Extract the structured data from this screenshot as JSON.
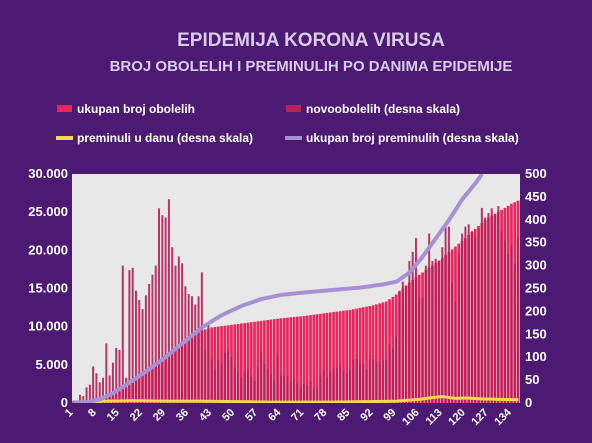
{
  "chart_data": {
    "type": "bar",
    "title": "EPIDEMIJA KORONA VIRUSA",
    "subtitle": "BROJ OBOLELIH I PREMINULIH PO DANIMA EPIDEMIJE",
    "legend_position": "top",
    "grid": false,
    "colors": {
      "background": "#4c1a72",
      "plot_area": "#e8e8e8",
      "cumulative_cases": "#e8265e",
      "new_cases": "#b5215a",
      "daily_deaths": "#f2d84a",
      "cumulative_deaths": "#a790d6"
    },
    "legend": [
      {
        "label": "ukupan broj obolelih",
        "series": "cumulative_cases",
        "style": "bar"
      },
      {
        "label": "novoobolelih (desna skala)",
        "series": "new_cases",
        "style": "bar"
      },
      {
        "label": "preminuli u danu (desna skala)",
        "series": "daily_deaths",
        "style": "line"
      },
      {
        "label": "ukupan broj preminulih (desna skala)",
        "series": "cumulative_deaths",
        "style": "line"
      }
    ],
    "x_ticks": [
      "1",
      "8",
      "15",
      "22",
      "29",
      "36",
      "43",
      "50",
      "57",
      "64",
      "71",
      "78",
      "85",
      "92",
      "99",
      "106",
      "113",
      "120",
      "127",
      "134"
    ],
    "y_left": {
      "min": 0,
      "max": 30000,
      "ticks": [
        "0",
        "5.000",
        "10.000",
        "15.000",
        "20.000",
        "25.000",
        "30.000"
      ]
    },
    "y_right": {
      "min": 0,
      "max": 500,
      "ticks": [
        "0",
        "50",
        "100",
        "150",
        "200",
        "250",
        "300",
        "350",
        "400",
        "450",
        "500"
      ]
    },
    "x_range": [
      1,
      136
    ],
    "series": {
      "cumulative_cases_knots": [
        [
          1,
          1
        ],
        [
          5,
          60
        ],
        [
          10,
          380
        ],
        [
          14,
          1200
        ],
        [
          20,
          3000
        ],
        [
          25,
          5000
        ],
        [
          30,
          6600
        ],
        [
          35,
          8200
        ],
        [
          40,
          9500
        ],
        [
          43,
          9900
        ],
        [
          50,
          10300
        ],
        [
          57,
          10700
        ],
        [
          64,
          11100
        ],
        [
          71,
          11400
        ],
        [
          78,
          11800
        ],
        [
          85,
          12200
        ],
        [
          92,
          12800
        ],
        [
          96,
          13300
        ],
        [
          99,
          14200
        ],
        [
          103,
          15800
        ],
        [
          106,
          16800
        ],
        [
          110,
          18000
        ],
        [
          113,
          19000
        ],
        [
          117,
          20500
        ],
        [
          120,
          21600
        ],
        [
          124,
          23200
        ],
        [
          127,
          24300
        ],
        [
          131,
          25300
        ],
        [
          134,
          26100
        ],
        [
          136,
          26500
        ]
      ],
      "new_cases": [
        5,
        5,
        18,
        15,
        34,
        40,
        80,
        65,
        45,
        55,
        130,
        60,
        88,
        120,
        116,
        300,
        55,
        290,
        295,
        245,
        225,
        205,
        235,
        260,
        280,
        300,
        425,
        410,
        405,
        445,
        340,
        300,
        320,
        305,
        255,
        238,
        233,
        215,
        233,
        285,
        115,
        175,
        95,
        75,
        93,
        90,
        110,
        115,
        100,
        78,
        63,
        57,
        70,
        72,
        58,
        48,
        80,
        113,
        85,
        75,
        62,
        50,
        109,
        60,
        60,
        58,
        47,
        51,
        45,
        35,
        42,
        38,
        48,
        32,
        33,
        60,
        70,
        57,
        70,
        75,
        77,
        84,
        70,
        66,
        72,
        94,
        96,
        87,
        85,
        74,
        95,
        95,
        91,
        90,
        93,
        95,
        128,
        119,
        145,
        245,
        265,
        255,
        310,
        330,
        360,
        230,
        230,
        300,
        370,
        310,
        315,
        310,
        340,
        384,
        385,
        265,
        220,
        325,
        370,
        385,
        390,
        375,
        360,
        380,
        426,
        405,
        415,
        425,
        410,
        430,
        375,
        355,
        325,
        345,
        305,
        360
      ],
      "daily_deaths_knots": [
        [
          1,
          0
        ],
        [
          10,
          4
        ],
        [
          20,
          5
        ],
        [
          30,
          4
        ],
        [
          40,
          4
        ],
        [
          50,
          3
        ],
        [
          60,
          2
        ],
        [
          70,
          2
        ],
        [
          80,
          2
        ],
        [
          90,
          3
        ],
        [
          99,
          4
        ],
        [
          106,
          8
        ],
        [
          110,
          12
        ],
        [
          113,
          14
        ],
        [
          117,
          10
        ],
        [
          120,
          11
        ],
        [
          125,
          9
        ],
        [
          130,
          8
        ],
        [
          136,
          7
        ]
      ],
      "cumulative_deaths_knots": [
        [
          1,
          1
        ],
        [
          5,
          2
        ],
        [
          9,
          8
        ],
        [
          13,
          22
        ],
        [
          17,
          40
        ],
        [
          22,
          64
        ],
        [
          28,
          95
        ],
        [
          34,
          130
        ],
        [
          40,
          165
        ],
        [
          46,
          192
        ],
        [
          52,
          212
        ],
        [
          58,
          227
        ],
        [
          64,
          236
        ],
        [
          72,
          242
        ],
        [
          80,
          247
        ],
        [
          88,
          252
        ],
        [
          95,
          259
        ],
        [
          99,
          265
        ],
        [
          103,
          285
        ],
        [
          107,
          320
        ],
        [
          111,
          360
        ],
        [
          115,
          400
        ],
        [
          119,
          445
        ],
        [
          123,
          480
        ],
        [
          125,
          500
        ]
      ]
    }
  }
}
